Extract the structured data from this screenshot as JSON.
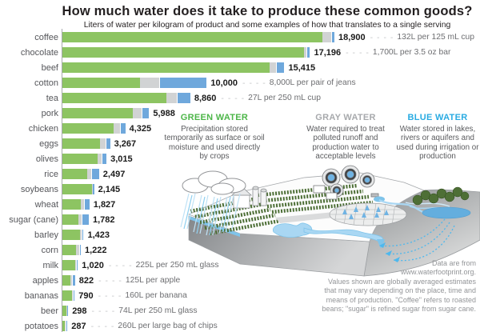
{
  "header": {
    "title": "How much water does it take to produce these common goods?",
    "subtitle": "Liters of water per kilogram of product and some examples of how that translates to a single serving"
  },
  "chart_data": {
    "type": "bar",
    "orientation": "horizontal",
    "units": "liters of water per kilogram of product",
    "xlim": [
      0,
      18900
    ],
    "dash": "- - - -",
    "colors": {
      "green": "#8dc462",
      "gray": "#d1d3d4",
      "blue": "#6fa8dc"
    },
    "series_legend": [
      "green water",
      "gray water",
      "blue water"
    ],
    "items": [
      {
        "label": "coffee",
        "value": "18,900",
        "total": 18900,
        "green": 18129,
        "gray": 613,
        "blue": 158,
        "annotation": "132L per 125 mL cup"
      },
      {
        "label": "chocolate",
        "value": "17,196",
        "total": 17196,
        "green": 16824,
        "gray": 174,
        "blue": 198,
        "annotation": "1,700L per 3.5 oz bar"
      },
      {
        "label": "beef",
        "value": "15,415",
        "total": 15415,
        "green": 14414,
        "gray": 451,
        "blue": 550,
        "annotation": ""
      },
      {
        "label": "cotton",
        "value": "10,000",
        "total": 10000,
        "green": 5400,
        "gray": 1350,
        "blue": 3250,
        "annotation": "8,000L per pair of jeans"
      },
      {
        "label": "tea",
        "value": "8,860",
        "total": 8860,
        "green": 7232,
        "gray": 726,
        "blue": 902,
        "annotation": "27L per 250 mL cup"
      },
      {
        "label": "pork",
        "value": "5,988",
        "total": 5988,
        "green": 4907,
        "gray": 622,
        "blue": 459,
        "annotation": ""
      },
      {
        "label": "chicken",
        "value": "4,325",
        "total": 4325,
        "green": 3545,
        "gray": 467,
        "blue": 313,
        "annotation": ""
      },
      {
        "label": "eggs",
        "value": "3,267",
        "total": 3267,
        "green": 2592,
        "gray": 429,
        "blue": 246,
        "annotation": ""
      },
      {
        "label": "olives",
        "value": "3,015",
        "total": 3015,
        "green": 2470,
        "gray": 283,
        "blue": 262,
        "annotation": ""
      },
      {
        "label": "rice",
        "value": "2,497",
        "total": 2497,
        "green": 1700,
        "gray": 330,
        "blue": 467,
        "annotation": ""
      },
      {
        "label": "soybeans",
        "value": "2,145",
        "total": 2145,
        "green": 2037,
        "gray": 37,
        "blue": 71,
        "annotation": ""
      },
      {
        "label": "wheat",
        "value": "1,827",
        "total": 1827,
        "green": 1277,
        "gray": 207,
        "blue": 343,
        "annotation": ""
      },
      {
        "label": "sugar (cane)",
        "value": "1,782",
        "total": 1782,
        "green": 1107,
        "gray": 220,
        "blue": 455,
        "annotation": ""
      },
      {
        "label": "barley",
        "value": "1,423",
        "total": 1423,
        "green": 1213,
        "gray": 131,
        "blue": 79,
        "annotation": ""
      },
      {
        "label": "corn",
        "value": "1,222",
        "total": 1222,
        "green": 947,
        "gray": 194,
        "blue": 81,
        "annotation": ""
      },
      {
        "label": "milk",
        "value": "1,020",
        "total": 1020,
        "green": 863,
        "gray": 72,
        "blue": 85,
        "annotation": "225L per 250 mL glass"
      },
      {
        "label": "apples",
        "value": "822",
        "total": 822,
        "green": 561,
        "gray": 127,
        "blue": 134,
        "annotation": "125L per apple"
      },
      {
        "label": "bananas",
        "value": "790",
        "total": 790,
        "green": 660,
        "gray": 33,
        "blue": 97,
        "annotation": "160L per banana"
      },
      {
        "label": "beer",
        "value": "298",
        "total": 298,
        "green": 254,
        "gray": 28,
        "blue": 16,
        "annotation": "74L per 250 mL glass"
      },
      {
        "label": "potatoes",
        "value": "287",
        "total": 287,
        "green": 191,
        "gray": 63,
        "blue": 33,
        "annotation": "260L per large bag of chips"
      }
    ]
  },
  "legend": {
    "columns": [
      {
        "id": "green",
        "heading": "GREEN WATER",
        "color": "#4cb648",
        "body": "Precipitation stored temporarily as surface or soil moisture and used directly by crops"
      },
      {
        "id": "gray",
        "heading": "GRAY WATER",
        "color": "#a7a9ac",
        "body": "Water required to treat polluted runoff and production water to acceptable levels"
      },
      {
        "id": "blue",
        "heading": "BLUE WATER",
        "color": "#29abe2",
        "body": "Water stored in lakes, rivers or aquifers and used during irrigation or production"
      }
    ]
  },
  "footer": {
    "lines": [
      "Data are from",
      "www.waterfootprint.org.",
      "Values shown are globally averaged estimates",
      "that may vary depending on the place, time and",
      "means of production. \"Coffee\" refers to roasted",
      "beans; \"sugar\" is refined sugar from sugar cane."
    ]
  }
}
